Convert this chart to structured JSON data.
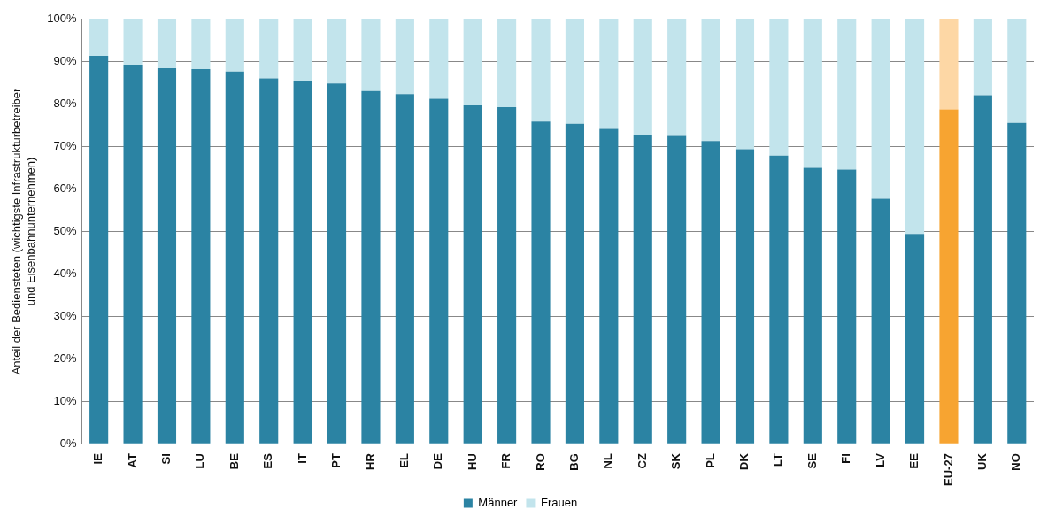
{
  "chart_data": {
    "type": "bar",
    "stacked": true,
    "ylabel": "Anteil der Bediensteten (wichtigste Infrastrukturbetreiber und Eisenbahnunternehmen)",
    "categories": [
      "IE",
      "AT",
      "SI",
      "LU",
      "BE",
      "ES",
      "IT",
      "PT",
      "HR",
      "EL",
      "DE",
      "HU",
      "FR",
      "RO",
      "BG",
      "NL",
      "CZ",
      "SK",
      "PL",
      "DK",
      "LT",
      "SE",
      "FI",
      "LV",
      "EE",
      "EU-27",
      "UK",
      "NO"
    ],
    "series": [
      {
        "name": "Männer",
        "color": "#2b83a3",
        "colors": [
          "#2b83a3",
          "#2b83a3",
          "#2b83a3",
          "#2b83a3",
          "#2b83a3",
          "#2b83a3",
          "#2b83a3",
          "#2b83a3",
          "#2b83a3",
          "#2b83a3",
          "#2b83a3",
          "#2b83a3",
          "#2b83a3",
          "#2b83a3",
          "#2b83a3",
          "#2b83a3",
          "#2b83a3",
          "#2b83a3",
          "#2b83a3",
          "#2b83a3",
          "#2b83a3",
          "#2b83a3",
          "#2b83a3",
          "#2b83a3",
          "#2b83a3",
          "#f7a431",
          "#2b83a3",
          "#2b83a3"
        ],
        "values": [
          91.4,
          89.3,
          88.5,
          88.3,
          87.7,
          86.1,
          85.4,
          84.9,
          83.1,
          82.4,
          81.3,
          79.7,
          79.3,
          75.9,
          75.4,
          74.2,
          72.7,
          72.5,
          71.3,
          69.4,
          67.9,
          65.0,
          64.6,
          57.7,
          49.4,
          78.8,
          82.1,
          75.6
        ]
      },
      {
        "name": "Frauen",
        "color": "#c2e4ec",
        "colors": [
          "#c2e4ec",
          "#c2e4ec",
          "#c2e4ec",
          "#c2e4ec",
          "#c2e4ec",
          "#c2e4ec",
          "#c2e4ec",
          "#c2e4ec",
          "#c2e4ec",
          "#c2e4ec",
          "#c2e4ec",
          "#c2e4ec",
          "#c2e4ec",
          "#c2e4ec",
          "#c2e4ec",
          "#c2e4ec",
          "#c2e4ec",
          "#c2e4ec",
          "#c2e4ec",
          "#c2e4ec",
          "#c2e4ec",
          "#c2e4ec",
          "#c2e4ec",
          "#c2e4ec",
          "#c2e4ec",
          "#fdd7a5",
          "#c2e4ec",
          "#c2e4ec"
        ],
        "values": [
          8.6,
          10.7,
          11.5,
          11.7,
          12.3,
          13.9,
          14.6,
          15.1,
          16.9,
          17.6,
          18.7,
          20.3,
          20.7,
          24.1,
          24.6,
          25.8,
          27.3,
          27.5,
          28.7,
          30.6,
          32.1,
          35.0,
          35.4,
          42.3,
          50.6,
          21.2,
          17.9,
          24.4
        ]
      }
    ],
    "ylim": [
      0,
      100
    ],
    "yticks": [
      {
        "value": 0,
        "label": "0%"
      },
      {
        "value": 10,
        "label": "10%"
      },
      {
        "value": 20,
        "label": "20%"
      },
      {
        "value": 30,
        "label": "30%"
      },
      {
        "value": 40,
        "label": "40%"
      },
      {
        "value": 50,
        "label": "50%"
      },
      {
        "value": 60,
        "label": "60%"
      },
      {
        "value": 70,
        "label": "70%"
      },
      {
        "value": 80,
        "label": "80%"
      },
      {
        "value": 90,
        "label": "90%"
      },
      {
        "value": 100,
        "label": "100%"
      }
    ],
    "grid": "y",
    "legend": "bottom"
  }
}
